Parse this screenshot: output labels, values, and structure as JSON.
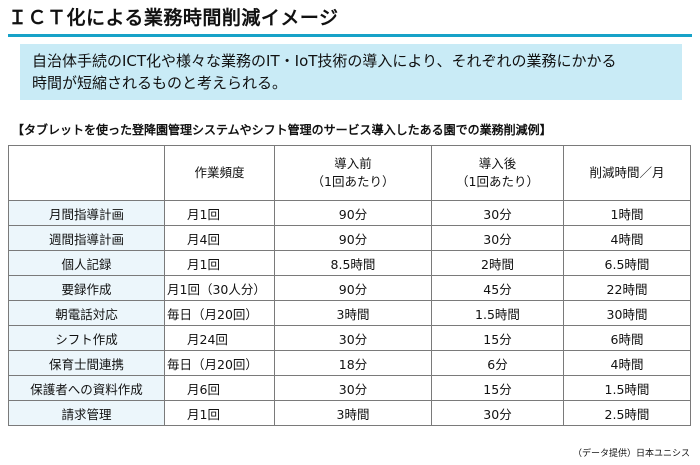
{
  "title": "ＩＣＴ化による業務時間削減イメージ",
  "intro": {
    "line1": "自治体手続のICT化や様々な業務のIT・IoT技術の導入により、それぞれの業務にかかる",
    "line2": "時間が短縮されるものと考えられる。"
  },
  "caption": "【タブレットを使った登降園管理システムやシフト管理のサービス導入したある園での業務削減例】",
  "table": {
    "headers": {
      "frequency": "作業頻度",
      "before_line1": "導入前",
      "before_line2": "（1回あたり）",
      "after_line1": "導入後",
      "after_line2": "（1回あたり）",
      "reduction": "削減時間／月"
    },
    "rows": [
      {
        "name": "月間指導計画",
        "frequency": "月1回",
        "before": "90分",
        "after": "30分",
        "reduction": "1時間"
      },
      {
        "name": "週間指導計画",
        "frequency": "月4回",
        "before": "90分",
        "after": "30分",
        "reduction": "4時間"
      },
      {
        "name": "個人記録",
        "frequency": "月1回",
        "before": "8.5時間",
        "after": "2時間",
        "reduction": "6.5時間"
      },
      {
        "name": "要録作成",
        "frequency": "月1回（30人分）",
        "before": "90分",
        "after": "45分",
        "reduction": "22時間"
      },
      {
        "name": "朝電話対応",
        "frequency": "毎日（月20回）",
        "before": "3時間",
        "after": "1.5時間",
        "reduction": "30時間"
      },
      {
        "name": "シフト作成",
        "frequency": "月24回",
        "before": "30分",
        "after": "15分",
        "reduction": "6時間"
      },
      {
        "name": "保育士間連携",
        "frequency": "毎日（月20回）",
        "before": "18分",
        "after": "6分",
        "reduction": "4時間"
      },
      {
        "name": "保護者への資料作成",
        "frequency": "月6回",
        "before": "30分",
        "after": "15分",
        "reduction": "1.5時間"
      },
      {
        "name": "請求管理",
        "frequency": "月1回",
        "before": "3時間",
        "after": "30分",
        "reduction": "2.5時間"
      }
    ]
  },
  "source": "（データ提供）日本ユニシス"
}
